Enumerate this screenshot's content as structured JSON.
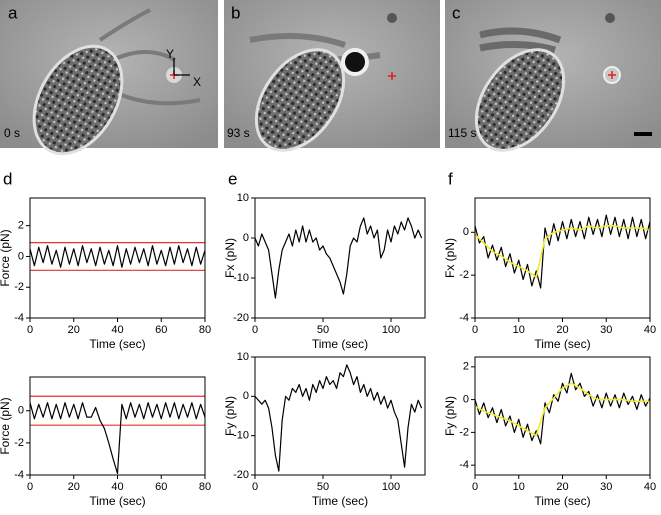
{
  "images": [
    {
      "panel": "a",
      "time": "0 s",
      "axis_y": "Y",
      "axis_x": "X"
    },
    {
      "panel": "b",
      "time": "93 s"
    },
    {
      "panel": "c",
      "time": "115 s"
    }
  ],
  "chart_data": [
    {
      "type": "line",
      "panel": "d",
      "xlabel": "Time (sec)",
      "ylabel": "Force (pN)",
      "x": [
        0,
        2,
        4,
        6,
        8,
        10,
        12,
        14,
        16,
        18,
        20,
        22,
        24,
        26,
        28,
        30,
        32,
        34,
        36,
        38,
        40,
        42,
        44,
        46,
        48,
        50,
        52,
        54,
        56,
        58,
        60,
        62,
        64,
        66,
        68,
        70,
        72,
        74,
        76,
        78,
        80
      ],
      "xlim": [
        0,
        80
      ],
      "xticks": [
        0,
        20,
        40,
        60,
        80
      ],
      "ylim": [
        -4,
        3.8
      ],
      "yticks": [
        -4,
        -2,
        0,
        2
      ],
      "reference_lines": [
        {
          "value": 0.9,
          "color": "#e8302a"
        },
        {
          "value": -0.9,
          "color": "#e8302a"
        }
      ],
      "series": [
        {
          "color": "#000000",
          "values": [
            0.5,
            -0.6,
            0.6,
            -0.4,
            0.7,
            -0.5,
            0.4,
            -0.7,
            0.6,
            -0.5,
            0.5,
            -0.6,
            0.7,
            -0.4,
            0.5,
            -0.6,
            0.6,
            -0.5,
            0.4,
            -0.6,
            0.7,
            -0.7,
            0.5,
            -0.5,
            0.6,
            -0.4,
            0.5,
            -0.6,
            0.7,
            -0.5,
            0.4,
            -0.6,
            0.6,
            -0.5,
            0.7,
            -0.4,
            0.5,
            -0.6,
            0.6,
            -0.5,
            0.4
          ]
        }
      ]
    },
    {
      "type": "line",
      "panel": "e",
      "xlabel": "Time (sec)",
      "ylabel": "Fx (pN)",
      "x": [
        0,
        2.5,
        5,
        7.5,
        10,
        12.5,
        15,
        17.5,
        20,
        22.5,
        25,
        27.5,
        30,
        32.5,
        35,
        37.5,
        40,
        42.5,
        45,
        47.5,
        50,
        52.5,
        55,
        57.5,
        60,
        62.5,
        65,
        67.5,
        70,
        72.5,
        75,
        77.5,
        80,
        82.5,
        85,
        87.5,
        90,
        92.5,
        95,
        97.5,
        100,
        102.5,
        105,
        107.5,
        110,
        112.5,
        115,
        117.5,
        120,
        122.5
      ],
      "xlim": [
        0,
        125
      ],
      "xticks": [
        0,
        50,
        100
      ],
      "ylim": [
        -20,
        10
      ],
      "yticks": [
        -20,
        -10,
        0,
        10
      ],
      "series": [
        {
          "color": "#000000",
          "values": [
            0,
            -2,
            1,
            -1,
            -3,
            -9,
            -15,
            -8,
            -3,
            -1,
            1,
            -2,
            2,
            -1,
            3,
            -1,
            2,
            -1,
            0,
            -3,
            -2,
            -4,
            -5,
            -7,
            -9,
            -11,
            -14,
            -9,
            -2,
            0,
            -1,
            3,
            5,
            1,
            3,
            0,
            2,
            -5,
            -3,
            2,
            -1,
            3,
            1,
            4,
            2,
            5,
            3,
            0,
            2,
            0
          ]
        }
      ]
    },
    {
      "type": "line",
      "panel": "f",
      "xlabel": "Time (sec)",
      "ylabel": "Fx (pN)",
      "x": [
        0,
        1,
        2,
        3,
        4,
        5,
        6,
        7,
        8,
        9,
        10,
        11,
        12,
        13,
        14,
        15,
        16,
        17,
        18,
        19,
        20,
        21,
        22,
        23,
        24,
        25,
        26,
        27,
        28,
        29,
        30,
        31,
        32,
        33,
        34,
        35,
        36,
        37,
        38,
        39,
        40
      ],
      "xlim": [
        0,
        40
      ],
      "xticks": [
        0,
        10,
        20,
        30,
        40
      ],
      "ylim": [
        -4,
        1.6
      ],
      "yticks": [
        -4,
        -2,
        0
      ],
      "series": [
        {
          "color": "#000000",
          "values": [
            0.3,
            -0.5,
            -0.2,
            -1.2,
            -0.6,
            -1.3,
            -0.7,
            -1.6,
            -1.0,
            -1.9,
            -1.3,
            -2.2,
            -1.5,
            -2.5,
            -1.8,
            -2.6,
            0.2,
            -0.6,
            0.4,
            -0.4,
            0.5,
            -0.3,
            0.6,
            -0.2,
            0.5,
            -0.3,
            0.7,
            -0.1,
            0.6,
            -0.2,
            0.8,
            -0.1,
            0.7,
            -0.2,
            0.6,
            -0.3,
            0.7,
            -0.2,
            0.6,
            -0.3,
            0.5
          ]
        },
        {
          "color": "#f2ea2a",
          "x": [
            0,
            2,
            4,
            6,
            8,
            10,
            12,
            14,
            16,
            18,
            20,
            22,
            24,
            26,
            28,
            30,
            32,
            34,
            36,
            38,
            40
          ],
          "values": [
            -0.1,
            -0.5,
            -0.9,
            -1.1,
            -1.4,
            -1.6,
            -1.8,
            -2.1,
            -0.3,
            0,
            0.1,
            0.2,
            0.1,
            0.3,
            0.2,
            0.3,
            0.3,
            0.2,
            0.2,
            0.2,
            0.1
          ]
        }
      ]
    },
    {
      "type": "line",
      "xlabel": "Time (sec)",
      "ylabel": "Force (pN)",
      "x": [
        0,
        2,
        4,
        6,
        8,
        10,
        12,
        14,
        16,
        18,
        20,
        22,
        24,
        26,
        28,
        30,
        32,
        34,
        36,
        38,
        40,
        42,
        44,
        46,
        48,
        50,
        52,
        54,
        56,
        58,
        60,
        62,
        64,
        66,
        68,
        70,
        72,
        74,
        76,
        78,
        80
      ],
      "xlim": [
        0,
        80
      ],
      "xticks": [
        0,
        20,
        40,
        60,
        80
      ],
      "ylim": [
        -4,
        2.1
      ],
      "yticks": [
        -4,
        -2,
        0
      ],
      "reference_lines": [
        {
          "value": 0.9,
          "color": "#e8302a"
        },
        {
          "value": -0.9,
          "color": "#e8302a"
        }
      ],
      "series": [
        {
          "color": "#000000",
          "values": [
            0.5,
            -0.5,
            0.4,
            -0.4,
            0.5,
            -0.5,
            0.4,
            -0.5,
            0.5,
            -0.4,
            0.4,
            -0.5,
            0.5,
            -0.4,
            -0.4,
            0.2,
            -0.6,
            -1.1,
            -2.0,
            -3.0,
            -3.9,
            0.4,
            -0.5,
            0.5,
            -0.4,
            0.4,
            -0.5,
            0.5,
            -0.4,
            0.4,
            -0.5,
            0.5,
            -0.4,
            0.5,
            -0.5,
            0.4,
            -0.4,
            0.5,
            -0.5,
            0.4,
            -0.4
          ]
        }
      ]
    },
    {
      "type": "line",
      "xlabel": "Time (sec)",
      "ylabel": "Fy (pN)",
      "x": [
        0,
        2.5,
        5,
        7.5,
        10,
        12.5,
        15,
        17.5,
        20,
        22.5,
        25,
        27.5,
        30,
        32.5,
        35,
        37.5,
        40,
        42.5,
        45,
        47.5,
        50,
        52.5,
        55,
        57.5,
        60,
        62.5,
        65,
        67.5,
        70,
        72.5,
        75,
        77.5,
        80,
        82.5,
        85,
        87.5,
        90,
        92.5,
        95,
        97.5,
        100,
        102.5,
        105,
        107.5,
        110,
        112.5,
        115,
        117.5,
        120,
        122.5
      ],
      "xlim": [
        0,
        125
      ],
      "xticks": [
        0,
        50,
        100
      ],
      "ylim": [
        -20,
        10
      ],
      "yticks": [
        -20,
        -10,
        0,
        10
      ],
      "series": [
        {
          "color": "#000000",
          "values": [
            0,
            -1,
            -2,
            -1,
            -3,
            -8,
            -15,
            -19,
            -6,
            0,
            -1,
            2,
            1,
            3,
            0,
            2,
            -1,
            3,
            1,
            4,
            2,
            5,
            3,
            4,
            2,
            6,
            5,
            8,
            6,
            3,
            5,
            1,
            3,
            0,
            2,
            -1,
            1,
            -2,
            0,
            -3,
            -1,
            -4,
            -6,
            -12,
            -18,
            -8,
            -2,
            -4,
            -1,
            -3
          ]
        }
      ]
    },
    {
      "type": "line",
      "xlabel": "Time (sec)",
      "ylabel": "Fy (pN)",
      "x": [
        0,
        1,
        2,
        3,
        4,
        5,
        6,
        7,
        8,
        9,
        10,
        11,
        12,
        13,
        14,
        15,
        16,
        17,
        18,
        19,
        20,
        21,
        22,
        23,
        24,
        25,
        26,
        27,
        28,
        29,
        30,
        31,
        32,
        33,
        34,
        35,
        36,
        37,
        38,
        39,
        40
      ],
      "xlim": [
        0,
        40
      ],
      "xticks": [
        0,
        10,
        20,
        30,
        40
      ],
      "ylim": [
        -4.6,
        2.6
      ],
      "yticks": [
        -4,
        -2,
        0,
        2
      ],
      "series": [
        {
          "color": "#000000",
          "values": [
            0,
            -0.9,
            -0.2,
            -1.1,
            -0.5,
            -1.4,
            -0.6,
            -1.6,
            -1.0,
            -2.0,
            -1.2,
            -2.3,
            -1.5,
            -2.5,
            -1.9,
            -2.7,
            -0.2,
            -0.8,
            0.3,
            -0.1,
            1.0,
            0.4,
            1.6,
            0.6,
            1.0,
            0.2,
            0.5,
            -0.4,
            0.3,
            -0.5,
            0.4,
            -0.4,
            0.3,
            -0.5,
            0.4,
            -0.3,
            0.2,
            -0.6,
            0.3,
            -0.4,
            0.1
          ]
        },
        {
          "color": "#f2ea2a",
          "x": [
            0,
            2,
            4,
            6,
            8,
            10,
            12,
            14,
            16,
            18,
            20,
            22,
            24,
            26,
            28,
            30,
            32,
            34,
            36,
            38,
            40
          ],
          "values": [
            -0.4,
            -0.7,
            -0.9,
            -1.1,
            -1.3,
            -1.6,
            -1.9,
            -2.2,
            -0.5,
            0.1,
            0.7,
            1.0,
            0.7,
            0.3,
            0,
            0,
            0,
            0,
            -0.1,
            -0.1,
            -0.1
          ]
        }
      ]
    }
  ]
}
